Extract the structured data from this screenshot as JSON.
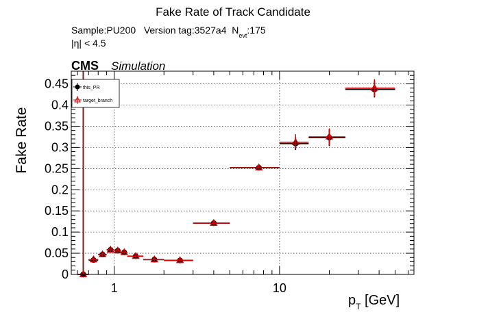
{
  "chart_data": {
    "type": "scatter",
    "title": "Fake Rate of Track Candidate",
    "sample_line_prefix": "Sample:PU200   Version tag:3527a4  N",
    "sample_line_sub": "evt",
    "sample_line_suffix": ":175",
    "eta_cut": "|η| < 4.5",
    "experiment_label": "CMS",
    "experiment_sublabel": "Simulation",
    "xlabel_main": "p",
    "xlabel_sub": "T",
    "xlabel_unit": " [GeV]",
    "ylabel": "Fake Rate",
    "xscale": "log",
    "xlim": [
      0.55,
      65
    ],
    "ylim": [
      0,
      0.48
    ],
    "grid": true,
    "legend_position": "top-left",
    "x_tick_labels": [
      {
        "value": 1,
        "label": "1"
      },
      {
        "value": 10,
        "label": "10"
      }
    ],
    "y_ticks": [
      0,
      0.05,
      0.1,
      0.15,
      0.2,
      0.25,
      0.3,
      0.35,
      0.4,
      0.45
    ],
    "y_tick_labels": [
      "0",
      "0.05",
      "0.1",
      "0.15",
      "0.2",
      "0.25",
      "0.3",
      "0.35",
      "0.4",
      "0.45"
    ],
    "series": [
      {
        "name": "this_PR",
        "color": "#000000",
        "marker": "circle",
        "points": [
          {
            "x": 0.65,
            "xlo": 0.6,
            "xhi": 0.7,
            "y": 0.0,
            "ylo": 0.0,
            "yhi": 0.48
          },
          {
            "x": 0.75,
            "xlo": 0.7,
            "xhi": 0.8,
            "y": 0.034,
            "ylo": 0.03,
            "yhi": 0.038
          },
          {
            "x": 0.85,
            "xlo": 0.8,
            "xhi": 0.9,
            "y": 0.047,
            "ylo": 0.043,
            "yhi": 0.051
          },
          {
            "x": 0.95,
            "xlo": 0.9,
            "xhi": 1.0,
            "y": 0.058,
            "ylo": 0.054,
            "yhi": 0.062
          },
          {
            "x": 1.05,
            "xlo": 1.0,
            "xhi": 1.1,
            "y": 0.056,
            "ylo": 0.052,
            "yhi": 0.06
          },
          {
            "x": 1.15,
            "xlo": 1.1,
            "xhi": 1.2,
            "y": 0.052,
            "ylo": 0.048,
            "yhi": 0.056
          },
          {
            "x": 1.35,
            "xlo": 1.2,
            "xhi": 1.5,
            "y": 0.043,
            "ylo": 0.039,
            "yhi": 0.047
          },
          {
            "x": 1.75,
            "xlo": 1.5,
            "xhi": 2.0,
            "y": 0.035,
            "ylo": 0.031,
            "yhi": 0.039
          },
          {
            "x": 2.5,
            "xlo": 2.0,
            "xhi": 3.0,
            "y": 0.033,
            "ylo": 0.029,
            "yhi": 0.037
          },
          {
            "x": 4.0,
            "xlo": 3.0,
            "xhi": 5.0,
            "y": 0.121,
            "ylo": 0.116,
            "yhi": 0.126
          },
          {
            "x": 7.5,
            "xlo": 5.0,
            "xhi": 10.0,
            "y": 0.252,
            "ylo": 0.246,
            "yhi": 0.258
          },
          {
            "x": 12.5,
            "xlo": 10.0,
            "xhi": 15.0,
            "y": 0.309,
            "ylo": 0.294,
            "yhi": 0.324
          },
          {
            "x": 20.0,
            "xlo": 15.0,
            "xhi": 25.0,
            "y": 0.323,
            "ylo": 0.303,
            "yhi": 0.343
          },
          {
            "x": 37.5,
            "xlo": 25.0,
            "xhi": 50.0,
            "y": 0.437,
            "ylo": 0.418,
            "yhi": 0.456
          }
        ]
      },
      {
        "name": "target_branch",
        "color": "#d40000",
        "marker": "triangle-open",
        "points": [
          {
            "x": 0.65,
            "xlo": 0.6,
            "xhi": 0.7,
            "y": 0.0,
            "ylo": 0.0,
            "yhi": 0.48
          },
          {
            "x": 0.75,
            "xlo": 0.7,
            "xhi": 0.8,
            "y": 0.035,
            "ylo": 0.031,
            "yhi": 0.039
          },
          {
            "x": 0.85,
            "xlo": 0.8,
            "xhi": 0.9,
            "y": 0.047,
            "ylo": 0.043,
            "yhi": 0.051
          },
          {
            "x": 0.95,
            "xlo": 0.9,
            "xhi": 1.0,
            "y": 0.058,
            "ylo": 0.054,
            "yhi": 0.062
          },
          {
            "x": 1.05,
            "xlo": 1.0,
            "xhi": 1.1,
            "y": 0.056,
            "ylo": 0.052,
            "yhi": 0.06
          },
          {
            "x": 1.15,
            "xlo": 1.1,
            "xhi": 1.2,
            "y": 0.052,
            "ylo": 0.048,
            "yhi": 0.056
          },
          {
            "x": 1.35,
            "xlo": 1.2,
            "xhi": 1.5,
            "y": 0.043,
            "ylo": 0.039,
            "yhi": 0.047
          },
          {
            "x": 1.75,
            "xlo": 1.5,
            "xhi": 2.0,
            "y": 0.035,
            "ylo": 0.031,
            "yhi": 0.039
          },
          {
            "x": 2.5,
            "xlo": 2.0,
            "xhi": 3.0,
            "y": 0.033,
            "ylo": 0.029,
            "yhi": 0.037
          },
          {
            "x": 4.0,
            "xlo": 3.0,
            "xhi": 5.0,
            "y": 0.121,
            "ylo": 0.116,
            "yhi": 0.126
          },
          {
            "x": 7.5,
            "xlo": 5.0,
            "xhi": 10.0,
            "y": 0.252,
            "ylo": 0.246,
            "yhi": 0.258
          },
          {
            "x": 12.5,
            "xlo": 10.0,
            "xhi": 15.0,
            "y": 0.312,
            "ylo": 0.297,
            "yhi": 0.331
          },
          {
            "x": 20.0,
            "xlo": 15.0,
            "xhi": 25.0,
            "y": 0.325,
            "ylo": 0.305,
            "yhi": 0.345
          },
          {
            "x": 37.5,
            "xlo": 25.0,
            "xhi": 50.0,
            "y": 0.44,
            "ylo": 0.42,
            "yhi": 0.461
          }
        ]
      }
    ]
  }
}
